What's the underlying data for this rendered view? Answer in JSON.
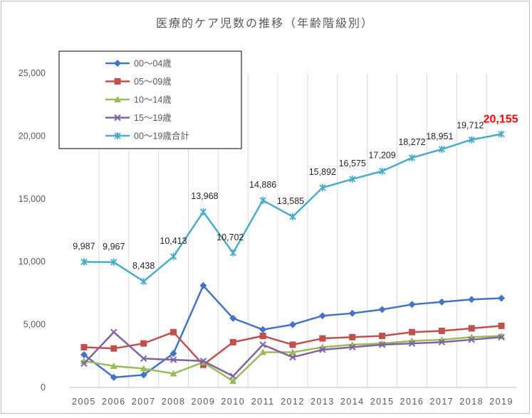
{
  "chart_data": {
    "type": "line",
    "title": "医療的ケア児数の推移（年齢階級別）",
    "xlabel": "",
    "ylabel": "",
    "ylim": [
      0,
      25000
    ],
    "yticks": [
      0,
      5000,
      10000,
      15000,
      20000,
      25000
    ],
    "ytick_labels": [
      "0",
      "5,000",
      "10,000",
      "15,000",
      "20,000",
      "25,000"
    ],
    "grid": "vertical",
    "legend_position": "top-left",
    "categories": [
      "2005",
      "2006",
      "2007",
      "2008",
      "2009",
      "2010",
      "2011",
      "2012",
      "2013",
      "2014",
      "2015",
      "2016",
      "2017",
      "2018",
      "2019"
    ],
    "series": [
      {
        "name": "00～04歳",
        "color": "#4472c4",
        "marker": "diamond",
        "values": [
          2600,
          800,
          1000,
          2700,
          8100,
          5500,
          4600,
          5000,
          5700,
          5900,
          6200,
          6600,
          6800,
          7000,
          7100
        ]
      },
      {
        "name": "05～09歳",
        "color": "#c0504d",
        "marker": "square",
        "values": [
          3200,
          3100,
          3500,
          4400,
          1800,
          3600,
          4100,
          3400,
          3900,
          4000,
          4100,
          4400,
          4500,
          4700,
          4900
        ]
      },
      {
        "name": "10～14歳",
        "color": "#9bbb59",
        "marker": "triangle",
        "values": [
          2100,
          1700,
          1500,
          1100,
          2000,
          500,
          2800,
          2800,
          3200,
          3400,
          3500,
          3700,
          3800,
          4000,
          4100
        ]
      },
      {
        "name": "15～19歳",
        "color": "#8064a2",
        "marker": "x",
        "values": [
          1900,
          4400,
          2300,
          2200,
          2100,
          900,
          3400,
          2400,
          3000,
          3200,
          3400,
          3500,
          3600,
          3800,
          4000
        ]
      },
      {
        "name": "00～19歳合計",
        "color": "#4bacc6",
        "marker": "star",
        "values": [
          9987,
          9967,
          8438,
          10413,
          13968,
          10702,
          14886,
          13585,
          15892,
          16575,
          17209,
          18272,
          18951,
          19712,
          20155
        ],
        "data_labels": [
          "9,987",
          "9,967",
          "8,438",
          "10,413",
          "13,968",
          "10,702",
          "14,886",
          "13,585",
          "15,892",
          "16,575",
          "17,209",
          "18,272",
          "18,951",
          "19,712",
          "20,155"
        ]
      }
    ],
    "highlight_label": {
      "index": 14,
      "text": "20,155",
      "color": "#ff0000"
    }
  }
}
